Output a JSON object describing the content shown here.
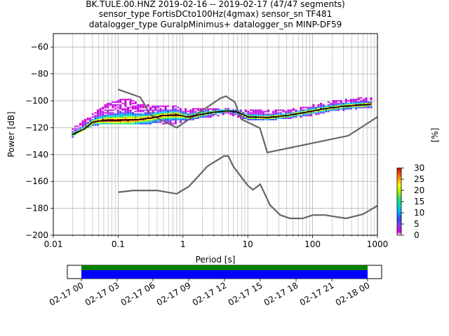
{
  "title": {
    "line1": "BK.TULE.00.HNZ   2019-02-16 -- 2019-02-17  (47/47 segments)",
    "line2": "sensor_type FortisDCto100Hz(4gmax) sensor_sn TF481",
    "line3": "datalogger_type GuralpMinimus+ datalogger_sn MINP-DF59"
  },
  "chart_data": [
    {
      "type": "heatmap",
      "xlabel": "Period [s]",
      "ylabel": "Power [dB]",
      "xscale": "log",
      "xlim": [
        0.01,
        1000
      ],
      "ylim": [
        -200,
        -50
      ],
      "xticks": [
        {
          "value": 0.01,
          "label": "0.01"
        },
        {
          "value": 0.1,
          "label": "0.1"
        },
        {
          "value": 1,
          "label": "1"
        },
        {
          "value": 10,
          "label": "10"
        },
        {
          "value": 100,
          "label": "100"
        },
        {
          "value": 1000,
          "label": "1000"
        }
      ],
      "yticks": [
        {
          "value": -60,
          "label": "−60"
        },
        {
          "value": -80,
          "label": "−80"
        },
        {
          "value": -100,
          "label": "−100"
        },
        {
          "value": -120,
          "label": "−120"
        },
        {
          "value": -140,
          "label": "−140"
        },
        {
          "value": -160,
          "label": "−160"
        },
        {
          "value": -180,
          "label": "−180"
        },
        {
          "value": -200,
          "label": "−200"
        }
      ],
      "grid": true,
      "colorbar": {
        "label": "[%]",
        "range": [
          0,
          30
        ],
        "ticks": [
          "0",
          "5",
          "10",
          "15",
          "20",
          "25",
          "30"
        ]
      },
      "noise_models": [
        {
          "points": [
            [
              0.1,
              -91.5
            ],
            [
              0.22,
              -97.4
            ],
            [
              0.32,
              -110.5
            ],
            [
              0.8,
              -120
            ],
            [
              3.8,
              -98
            ],
            [
              4.6,
              -96.5
            ],
            [
              6.3,
              -101
            ],
            [
              7.9,
              -113.6
            ],
            [
              15.4,
              -120.3
            ],
            [
              20,
              -138.5
            ],
            [
              354.8,
              -126
            ],
            [
              1000,
              -112
            ]
          ]
        },
        {
          "points": [
            [
              0.1,
              -168
            ],
            [
              0.17,
              -166.7
            ],
            [
              0.4,
              -166.7
            ],
            [
              0.8,
              -169.2
            ],
            [
              1.24,
              -163.7
            ],
            [
              2.4,
              -148.6
            ],
            [
              4.3,
              -141.1
            ],
            [
              5,
              -141.1
            ],
            [
              6,
              -149
            ],
            [
              10,
              -163
            ],
            [
              12,
              -166.2
            ],
            [
              15.6,
              -162.1
            ],
            [
              21.9,
              -177.5
            ],
            [
              31.6,
              -185
            ],
            [
              45,
              -187.5
            ],
            [
              70,
              -187.5
            ],
            [
              101,
              -185
            ],
            [
              154,
              -185
            ],
            [
              328,
              -187.5
            ],
            [
              600,
              -184.4
            ],
            [
              1000,
              -178
            ]
          ]
        }
      ],
      "mode_curve": [
        [
          0.02,
          -125
        ],
        [
          0.03,
          -121
        ],
        [
          0.04,
          -116
        ],
        [
          0.06,
          -114.5
        ],
        [
          0.1,
          -114.5
        ],
        [
          0.2,
          -114
        ],
        [
          0.3,
          -113
        ],
        [
          0.5,
          -111
        ],
        [
          0.8,
          -110.5
        ],
        [
          1.2,
          -112
        ],
        [
          2,
          -110
        ],
        [
          3,
          -108.5
        ],
        [
          5,
          -107.5
        ],
        [
          7,
          -108.5
        ],
        [
          10,
          -112
        ],
        [
          20,
          -112.5
        ],
        [
          40,
          -111
        ],
        [
          70,
          -109
        ],
        [
          150,
          -106
        ],
        [
          300,
          -104
        ],
        [
          600,
          -103
        ],
        [
          800,
          -102.5
        ]
      ],
      "density_band": {
        "upper": [
          [
            0.02,
            -120
          ],
          [
            0.04,
            -110
          ],
          [
            0.06,
            -103
          ],
          [
            0.1,
            -99
          ],
          [
            0.15,
            -98
          ],
          [
            0.2,
            -102
          ],
          [
            0.3,
            -103
          ],
          [
            0.5,
            -104
          ],
          [
            0.8,
            -103
          ],
          [
            1,
            -106
          ],
          [
            2,
            -106
          ],
          [
            5,
            -106
          ],
          [
            10,
            -107
          ],
          [
            20,
            -107
          ],
          [
            50,
            -106
          ],
          [
            100,
            -103
          ],
          [
            200,
            -100
          ],
          [
            500,
            -98
          ],
          [
            800,
            -98
          ]
        ],
        "lower": [
          [
            0.02,
            -127
          ],
          [
            0.04,
            -119
          ],
          [
            0.06,
            -117
          ],
          [
            0.1,
            -117
          ],
          [
            0.2,
            -117
          ],
          [
            0.4,
            -117
          ],
          [
            0.8,
            -117
          ],
          [
            1.2,
            -115
          ],
          [
            2,
            -113
          ],
          [
            5,
            -110
          ],
          [
            10,
            -114
          ],
          [
            20,
            -115
          ],
          [
            50,
            -113
          ],
          [
            100,
            -111
          ],
          [
            200,
            -108
          ],
          [
            500,
            -106
          ],
          [
            800,
            -105
          ]
        ]
      },
      "segment_time_axis": {
        "ticks": [
          "02-17 00",
          "02-17 03",
          "02-17 06",
          "02-17 09",
          "02-17 12",
          "02-17 15",
          "02-17 18",
          "02-17 21",
          "02-18 00"
        ],
        "coverage": [
          {
            "color": "#008000"
          },
          {
            "color": "#0000ff"
          }
        ]
      },
      "colors": {
        "noise_model": "#666666",
        "mode_curve": "#000000",
        "grid": "#b0b0b0",
        "coverage_green": "#008000",
        "coverage_blue": "#0000ff"
      }
    }
  ]
}
